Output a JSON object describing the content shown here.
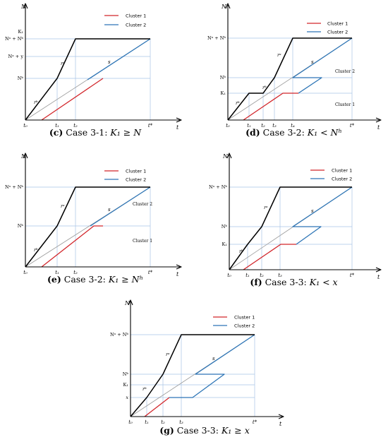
{
  "colors": {
    "axis": "#000000",
    "aggregate": "#000000",
    "cluster1": "#d2262b",
    "cluster2": "#2d75b6",
    "reference": "#9a9a9a",
    "guide": "#a9c4e6"
  },
  "legend": {
    "cluster1": "Cluster 1",
    "cluster2": "Cluster 2"
  },
  "panels": [
    {
      "tag": "(c)",
      "case": "Case 3-1:",
      "condition": "K₁ ≥ N",
      "y_axis": "N",
      "x_axis": "t",
      "y_ticks": [
        "K₁",
        "Nᵃ + Nᵇ",
        "Nᵃ + y",
        "Nᵇ"
      ],
      "x_ticks": [
        "t₀",
        "t₁",
        "t₂",
        "t*"
      ],
      "slopes": [
        "rᵇ",
        "rᵃ",
        "s"
      ],
      "region_labels": []
    },
    {
      "tag": "(d)",
      "case": "Case 3-2:",
      "condition": "K₁ < Nʰ",
      "y_axis": "N",
      "x_axis": "t",
      "y_ticks": [
        "Nᵃ + Nᵇ",
        "Nᵇ",
        "K₁"
      ],
      "x_ticks": [
        "t₀",
        "t₁",
        "t₂",
        "t₃",
        "t₄",
        "t*"
      ],
      "slopes": [
        "rᵇ",
        "rᵇ",
        "rᵃ",
        "s"
      ],
      "region_labels": [
        "Cluster 2",
        "Cluster 1"
      ]
    },
    {
      "tag": "(e)",
      "case": "Case 3-2:",
      "condition": "K₁ ≥ Nʰ",
      "y_axis": "N",
      "x_axis": "t",
      "y_ticks": [
        "Nᵃ + Nᵇ",
        "Nᵇ"
      ],
      "x_ticks": [
        "t₀",
        "t₁",
        "t₂",
        "t*"
      ],
      "slopes": [
        "rᵇ",
        "rᵃ",
        "s"
      ],
      "region_labels": [
        "Cluster 2",
        "Cluster 1"
      ]
    },
    {
      "tag": "(f)",
      "case": "Case 3-3:",
      "condition": "K₁ < x",
      "y_axis": "N",
      "x_axis": "t",
      "y_ticks": [
        "Nᵃ + Nᵇ",
        "Nᵇ",
        "K₁"
      ],
      "x_ticks": [
        "t₀",
        "t₁",
        "t₂",
        "t₃",
        "t*"
      ],
      "slopes": [
        "rᵇ",
        "rᵃ",
        "s"
      ],
      "region_labels": []
    },
    {
      "tag": "(g)",
      "case": "Case 3-3:",
      "condition": "K₁ ≥ x",
      "y_axis": "N",
      "x_axis": "t",
      "y_ticks": [
        "Nᵃ + Nᵇ",
        "Nᵇ",
        "K₁",
        "x"
      ],
      "x_ticks": [
        "t₀",
        "t₁",
        "t₂",
        "t₃",
        "t*"
      ],
      "slopes": [
        "rᵇ",
        "rᵃ",
        "s"
      ],
      "region_labels": []
    }
  ]
}
